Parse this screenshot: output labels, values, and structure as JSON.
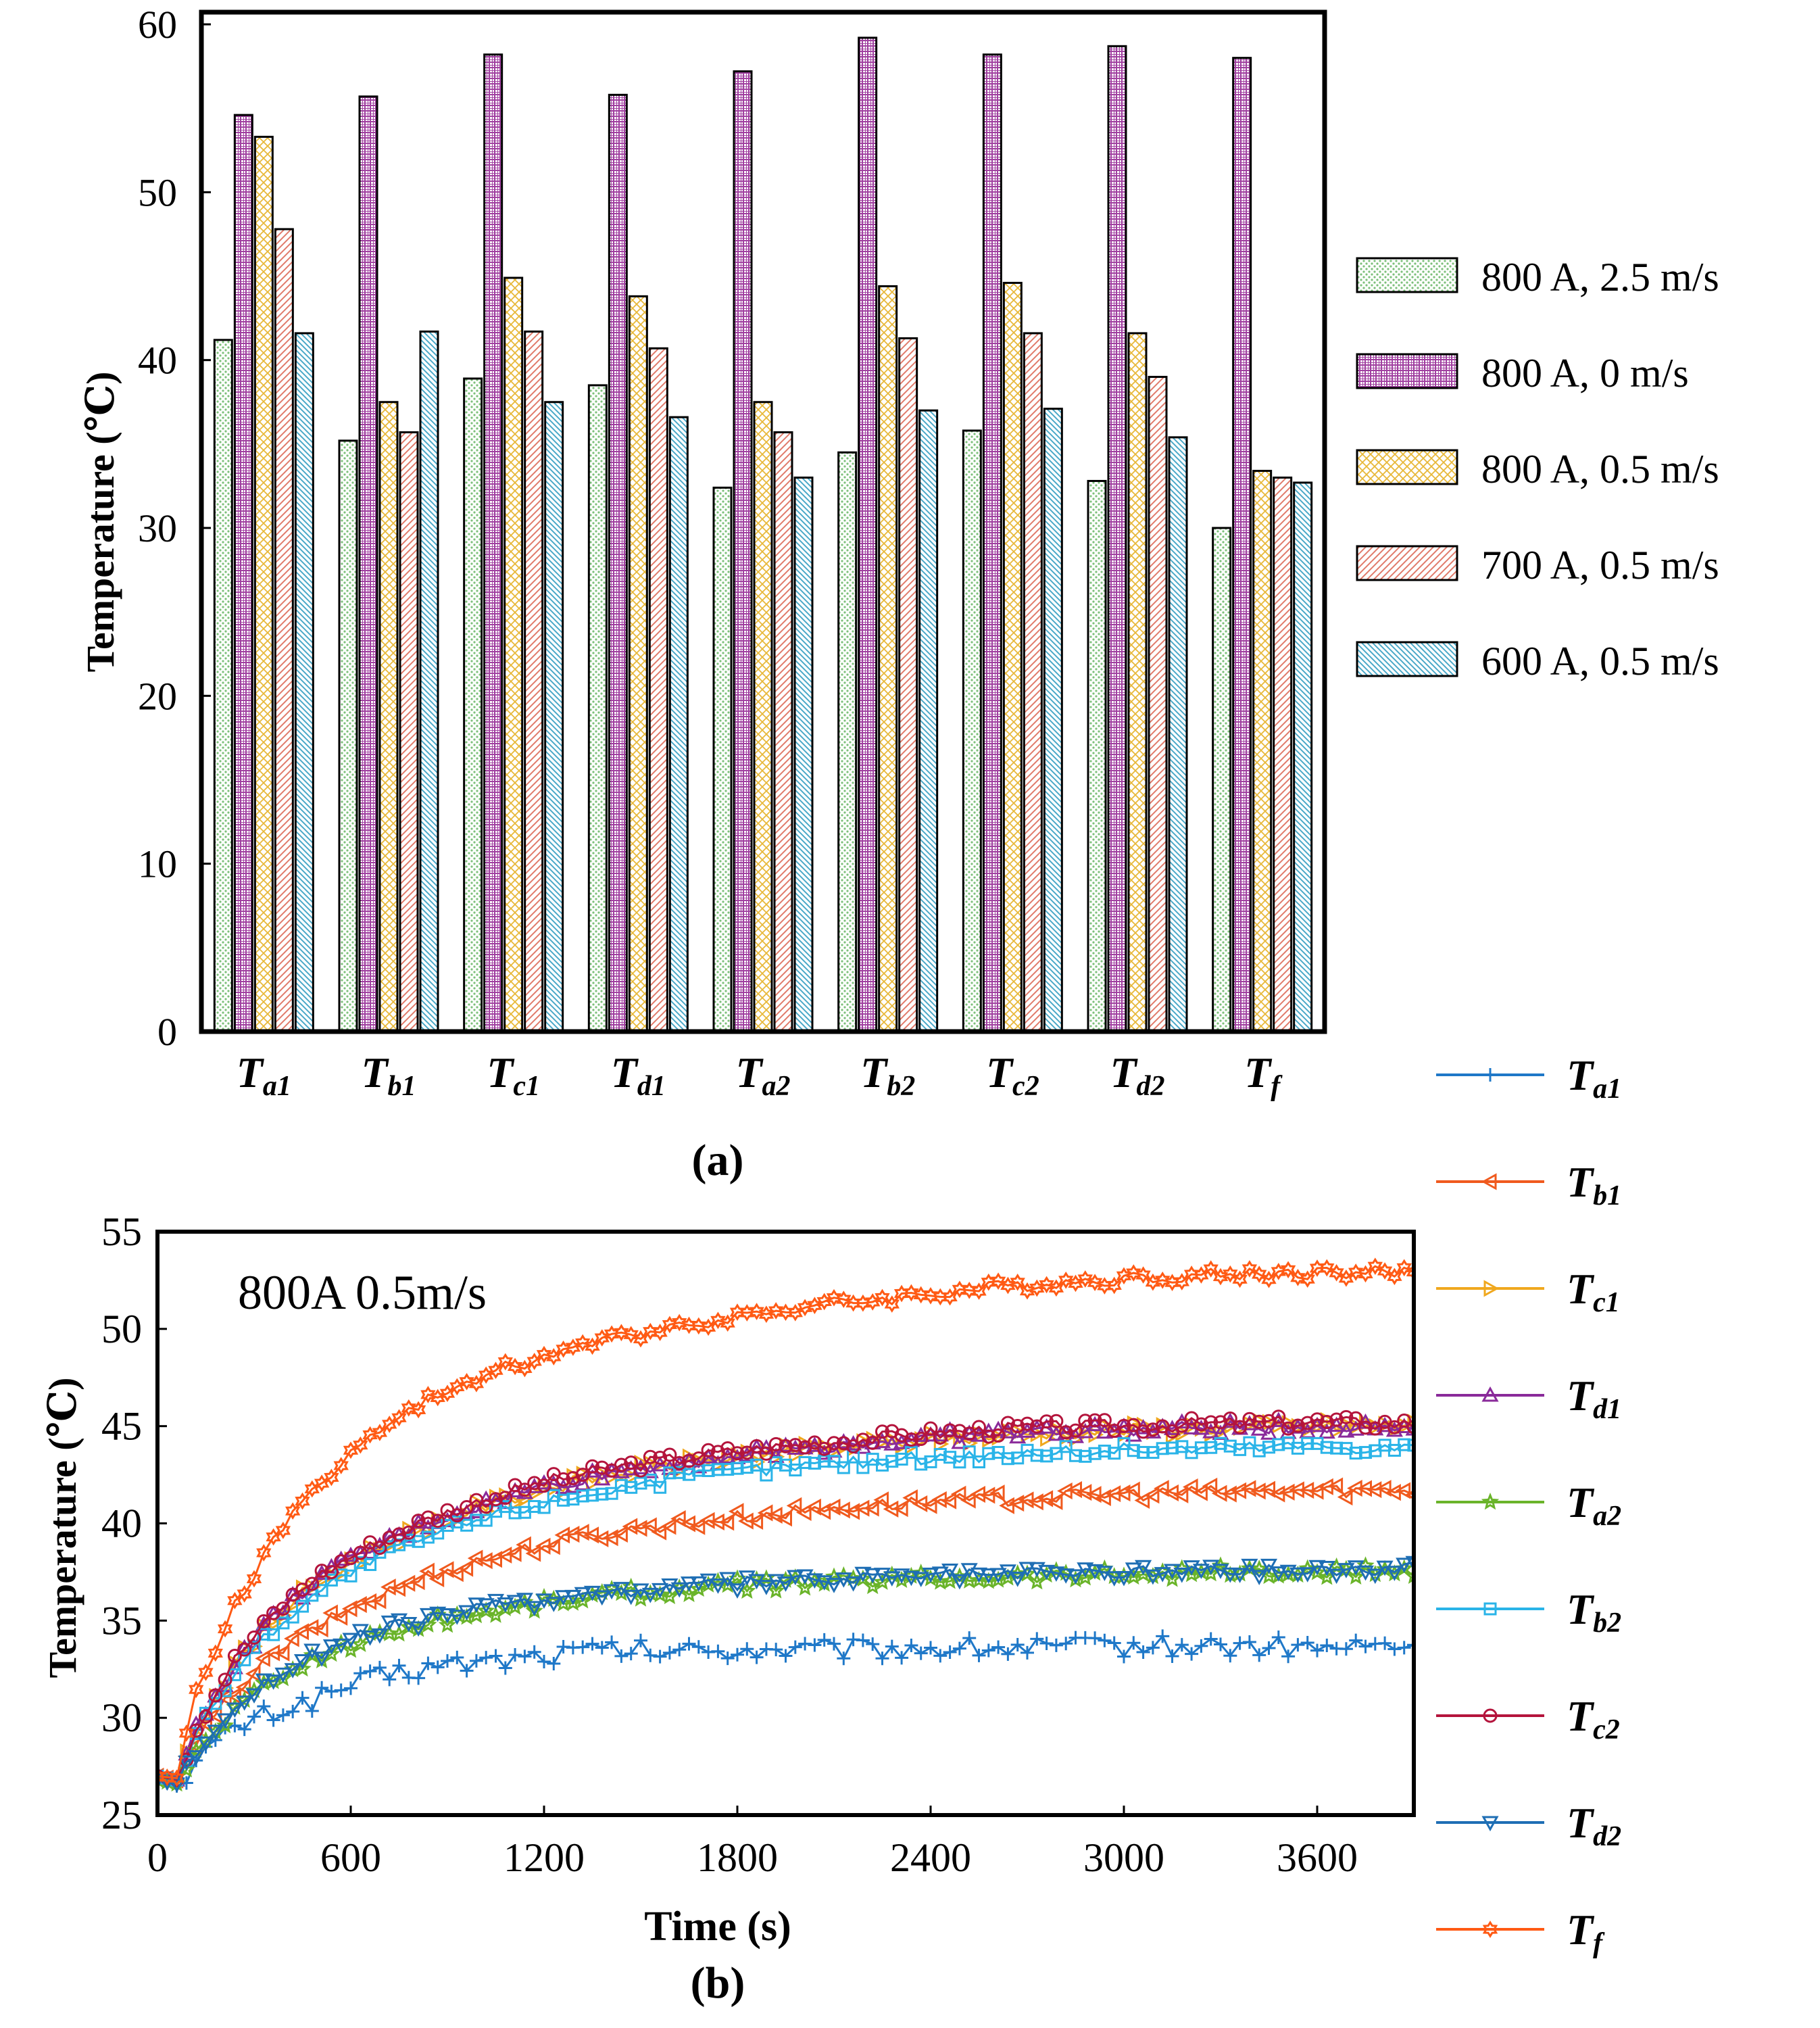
{
  "chart_data": [
    {
      "type": "bar",
      "panel_label": "(a)",
      "title": "",
      "xlabel": "",
      "ylabel": "Temperature (℃)",
      "ylim": [
        0,
        60
      ],
      "yticks": [
        "0",
        "10",
        "20",
        "30",
        "40",
        "50",
        "60"
      ],
      "categories": [
        {
          "base": "T",
          "sub": "a1"
        },
        {
          "base": "T",
          "sub": "b1"
        },
        {
          "base": "T",
          "sub": "c1"
        },
        {
          "base": "T",
          "sub": "d1"
        },
        {
          "base": "T",
          "sub": "a2"
        },
        {
          "base": "T",
          "sub": "b2"
        },
        {
          "base": "T",
          "sub": "c2"
        },
        {
          "base": "T",
          "sub": "d2"
        },
        {
          "base": "T",
          "sub": "f"
        }
      ],
      "legend_position": "right",
      "series": [
        {
          "name": "800 A,  2.5 m/s",
          "pattern": "dots",
          "color": "#7cc07a",
          "values": [
            41.2,
            35.2,
            38.9,
            38.5,
            32.4,
            34.5,
            35.8,
            32.8,
            30.0
          ]
        },
        {
          "name": "800 A,   0   m/s",
          "pattern": "grid",
          "color": "#a040a0",
          "values": [
            54.6,
            55.7,
            58.2,
            55.8,
            57.2,
            59.2,
            58.2,
            58.7,
            58.0
          ]
        },
        {
          "name": "800 A,  0.5 m/s",
          "pattern": "crosshatch",
          "color": "#e8b83a",
          "values": [
            53.3,
            37.5,
            44.9,
            43.8,
            37.5,
            44.4,
            44.6,
            41.6,
            33.4
          ]
        },
        {
          "name": "700 A,  0.5 m/s",
          "pattern": "diag-fwd",
          "color": "#e07a6a",
          "values": [
            47.8,
            35.7,
            41.7,
            40.7,
            35.7,
            41.3,
            41.6,
            39.0,
            33.0
          ]
        },
        {
          "name": "600 A,  0.5 m/s",
          "pattern": "diag-back",
          "color": "#4aa8c8",
          "values": [
            41.6,
            41.7,
            37.5,
            36.6,
            33.0,
            37.0,
            37.1,
            35.4,
            32.7
          ]
        }
      ]
    },
    {
      "type": "line",
      "panel_label": "(b)",
      "title": "",
      "annotation": "800A  0.5m/s",
      "xlabel": "Time (s)",
      "ylabel": "Temperature (℃)",
      "xlim": [
        0,
        3900
      ],
      "ylim": [
        25,
        55
      ],
      "xticks": [
        "0",
        "600",
        "1200",
        "1800",
        "2400",
        "3000",
        "3600"
      ],
      "yticks": [
        "25",
        "30",
        "35",
        "40",
        "45",
        "50",
        "55"
      ],
      "legend_position": "right",
      "series": [
        {
          "name": {
            "base": "T",
            "sub": "a1"
          },
          "marker": "plus",
          "color": "#1f78c8",
          "x": [
            0,
            60,
            120,
            240,
            360,
            480,
            600,
            720,
            840,
            960,
            1080,
            1200,
            1320,
            1440,
            1560,
            1800,
            2100,
            2400,
            2700,
            3000,
            3300,
            3600,
            3900
          ],
          "y": [
            26.8,
            26.5,
            27.8,
            29.5,
            30.3,
            30.9,
            31.7,
            32.2,
            32.6,
            32.8,
            33.0,
            33.2,
            33.4,
            33.5,
            33.4,
            33.5,
            33.5,
            33.6,
            33.6,
            33.7,
            33.7,
            33.6,
            33.7
          ]
        },
        {
          "name": {
            "base": "T",
            "sub": "b1"
          },
          "marker": "triangle-left",
          "color": "#f05a1e",
          "x": [
            0,
            60,
            120,
            240,
            360,
            480,
            600,
            720,
            840,
            960,
            1080,
            1200,
            1320,
            1440,
            1560,
            1800,
            2100,
            2400,
            2700,
            3000,
            3300,
            3600,
            3900
          ],
          "y": [
            27.0,
            26.8,
            28.7,
            31.4,
            33.2,
            34.5,
            35.6,
            36.5,
            37.3,
            37.9,
            38.4,
            38.9,
            39.3,
            39.6,
            39.9,
            40.3,
            40.8,
            41.1,
            41.3,
            41.5,
            41.6,
            41.7,
            41.7
          ]
        },
        {
          "name": {
            "base": "T",
            "sub": "c1"
          },
          "marker": "triangle-right",
          "color": "#f0a81e",
          "x": [
            0,
            60,
            120,
            240,
            360,
            480,
            600,
            720,
            840,
            960,
            1080,
            1200,
            1320,
            1440,
            1560,
            1800,
            2100,
            2400,
            2700,
            3000,
            3300,
            3600,
            3900
          ],
          "y": [
            27.0,
            26.8,
            29.4,
            32.7,
            35.0,
            36.8,
            38.0,
            39.0,
            39.9,
            40.6,
            41.2,
            41.8,
            42.2,
            42.6,
            42.9,
            43.4,
            43.9,
            44.3,
            44.6,
            44.8,
            44.9,
            45.0,
            45.0
          ]
        },
        {
          "name": {
            "base": "T",
            "sub": "d1"
          },
          "marker": "triangle-up",
          "color": "#8a2a9a",
          "x": [
            0,
            60,
            120,
            240,
            360,
            480,
            600,
            720,
            840,
            960,
            1080,
            1200,
            1320,
            1440,
            1560,
            1800,
            2100,
            2400,
            2700,
            3000,
            3300,
            3600,
            3900
          ],
          "y": [
            27.0,
            26.8,
            29.4,
            32.8,
            35.1,
            36.9,
            38.1,
            39.1,
            40.0,
            40.7,
            41.3,
            41.9,
            42.3,
            42.7,
            43.0,
            43.5,
            44.0,
            44.4,
            44.7,
            44.8,
            44.9,
            45.0,
            44.9
          ]
        },
        {
          "name": {
            "base": "T",
            "sub": "a2"
          },
          "marker": "star",
          "color": "#6ab42a",
          "x": [
            0,
            60,
            120,
            240,
            360,
            480,
            600,
            720,
            840,
            960,
            1080,
            1200,
            1320,
            1440,
            1560,
            1800,
            2100,
            2400,
            2700,
            3000,
            3300,
            3600,
            3900
          ],
          "y": [
            26.8,
            26.6,
            28.2,
            30.4,
            31.9,
            33.0,
            33.8,
            34.4,
            34.9,
            35.3,
            35.6,
            35.9,
            36.2,
            36.4,
            36.5,
            36.8,
            37.0,
            37.2,
            37.3,
            37.4,
            37.5,
            37.4,
            37.6
          ]
        },
        {
          "name": {
            "base": "T",
            "sub": "b2"
          },
          "marker": "square",
          "color": "#2ab4e8",
          "x": [
            0,
            60,
            120,
            240,
            360,
            480,
            600,
            720,
            840,
            960,
            1080,
            1200,
            1320,
            1440,
            1560,
            1800,
            2100,
            2400,
            2700,
            3000,
            3300,
            3600,
            3900
          ],
          "y": [
            27.0,
            26.8,
            29.2,
            32.4,
            34.6,
            36.3,
            37.5,
            38.5,
            39.3,
            40.0,
            40.6,
            41.1,
            41.5,
            41.9,
            42.2,
            42.7,
            43.1,
            43.4,
            43.6,
            43.8,
            43.9,
            44.0,
            43.9
          ]
        },
        {
          "name": {
            "base": "T",
            "sub": "c2"
          },
          "marker": "circle",
          "color": "#b4143c",
          "x": [
            0,
            60,
            120,
            240,
            360,
            480,
            600,
            720,
            840,
            960,
            1080,
            1200,
            1320,
            1440,
            1560,
            1800,
            2100,
            2400,
            2700,
            3000,
            3300,
            3600,
            3900
          ],
          "y": [
            27.0,
            26.8,
            29.5,
            33.0,
            35.3,
            37.1,
            38.3,
            39.3,
            40.2,
            40.9,
            41.5,
            42.1,
            42.5,
            42.9,
            43.2,
            43.7,
            44.2,
            44.6,
            44.9,
            45.0,
            45.1,
            45.2,
            45.1
          ]
        },
        {
          "name": {
            "base": "T",
            "sub": "d2"
          },
          "marker": "triangle-down",
          "color": "#1e6eb4",
          "x": [
            0,
            60,
            120,
            240,
            360,
            480,
            600,
            720,
            840,
            960,
            1080,
            1200,
            1320,
            1440,
            1560,
            1800,
            2100,
            2400,
            2700,
            3000,
            3300,
            3600,
            3900
          ],
          "y": [
            26.8,
            26.6,
            28.3,
            30.6,
            32.1,
            33.2,
            34.0,
            34.6,
            35.1,
            35.5,
            35.8,
            36.1,
            36.3,
            36.5,
            36.6,
            36.9,
            37.1,
            37.3,
            37.4,
            37.5,
            37.6,
            37.6,
            37.7
          ]
        },
        {
          "name": {
            "base": "T",
            "sub": "f"
          },
          "marker": "hexagram",
          "color": "#ff5a14",
          "x": [
            0,
            60,
            120,
            240,
            360,
            480,
            600,
            720,
            840,
            960,
            1080,
            1200,
            1320,
            1440,
            1560,
            1800,
            2100,
            2400,
            2700,
            3000,
            3300,
            3600,
            3900
          ],
          "y": [
            27.0,
            26.9,
            31.2,
            35.8,
            39.1,
            41.7,
            43.6,
            45.1,
            46.3,
            47.3,
            48.0,
            48.6,
            49.1,
            49.6,
            50.0,
            50.7,
            51.3,
            51.8,
            52.3,
            52.6,
            52.8,
            52.9,
            52.9
          ]
        }
      ]
    }
  ]
}
